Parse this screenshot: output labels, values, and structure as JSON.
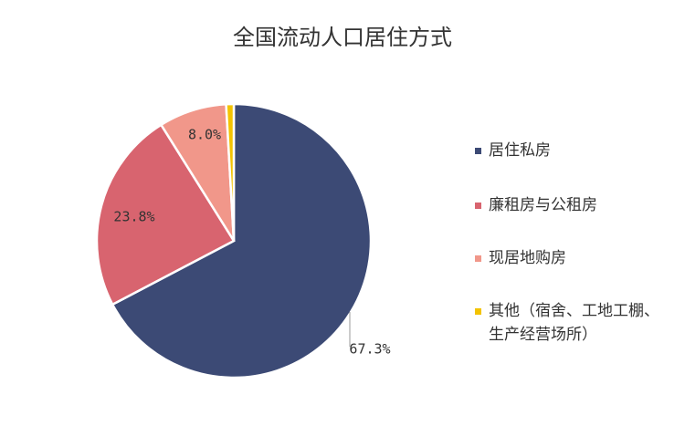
{
  "chart_data": {
    "type": "pie",
    "title": "全国流动人口居住方式",
    "categories": [
      "居住私房",
      "廉租房与公租房",
      "现居地购房",
      "其他（宿舍、工地工棚、生产经营场所）"
    ],
    "values": [
      67.3,
      23.8,
      8.0,
      0.9
    ],
    "value_labels": [
      "67.3%",
      "23.8%",
      "8.0%",
      null
    ],
    "colors": [
      "#3c4a75",
      "#d8646f",
      "#f1978a",
      "#f3c300"
    ],
    "legend": "right"
  }
}
